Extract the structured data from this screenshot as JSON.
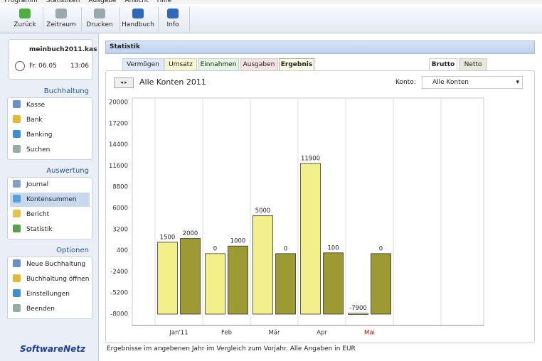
{
  "menu": [
    "Programm",
    "Statistiken",
    "Ausgabe",
    "Ansicht",
    "Hilfe"
  ],
  "toolbar": [
    "Zurück",
    "Zeitraum",
    "Drucken",
    "Handbuch",
    "Info"
  ],
  "file": {
    "name": "meinbuch2011.kas",
    "date": "Fr. 06.05",
    "time": "13:06"
  },
  "sidebar": [
    {
      "title": "Buchhaltung",
      "items": [
        "Kasse",
        "Bank",
        "Banking",
        "Suchen"
      ]
    },
    {
      "title": "Auswertung",
      "items": [
        "Journal",
        "Kontensummen",
        "Bericht",
        "Statistik"
      ]
    },
    {
      "title": "Optionen",
      "items": [
        "Neue Buchhaltung",
        "Buchhaltung öffnen",
        "Einstellungen",
        "Beenden"
      ]
    }
  ],
  "logo": "SoftwareNetz",
  "header": "Statistik",
  "tabs": [
    "Vermögen",
    "Umsatz",
    "Einnahmen",
    "Ausgaben",
    "Ergebnis"
  ],
  "view_tabs": [
    "Brutto",
    "Netto"
  ],
  "chart_header": {
    "title": "Alle Konten 2011",
    "konto_label": "Konto:",
    "konto_value": "Alle Konten"
  },
  "chart_data": {
    "type": "bar",
    "categories": [
      "Jan'11",
      "Feb",
      "Mär",
      "Apr",
      "Mai"
    ],
    "category_label_colors": [
      "#333333",
      "#333333",
      "#333333",
      "#333333",
      "#cc0000"
    ],
    "series": [
      {
        "color": "#f3f08c",
        "values": [
          1500,
          0,
          5000,
          11900,
          -7900
        ]
      },
      {
        "color": "#9d9a33",
        "values": [
          2000,
          1000,
          0,
          100,
          0
        ]
      }
    ],
    "ylim": [
      -8000,
      20000
    ],
    "yticks": [
      20000,
      17200,
      14400,
      11600,
      8800,
      6000,
      3200,
      400,
      -2400,
      -5200,
      -8000
    ],
    "grid": false
  },
  "footer": "Ergebnisse im angebenen Jahr im Vergleich zum Vorjahr.  Alle Angaben in EUR"
}
